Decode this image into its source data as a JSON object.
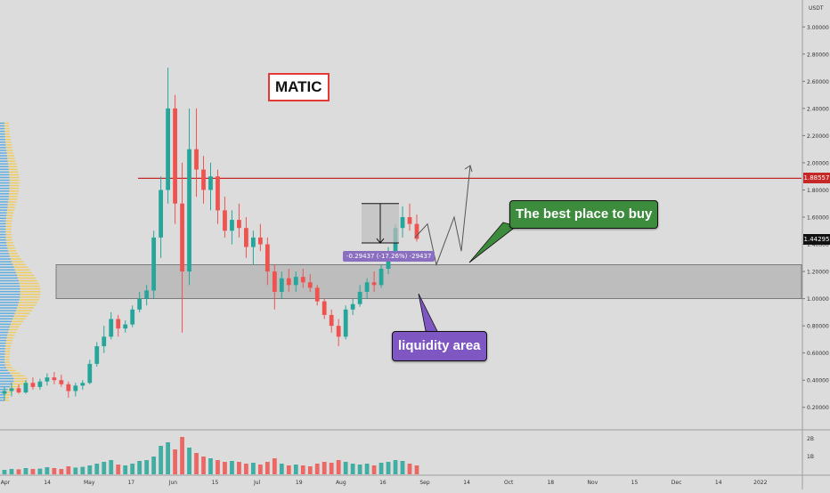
{
  "chart_data": {
    "type": "candlestick",
    "currency": "USDT",
    "ylim": [
      0.1,
      3.1
    ],
    "y_ticks": [
      "3.00000",
      "2.80000",
      "2.60000",
      "2.40000",
      "2.20000",
      "2.00000",
      "1.80000",
      "1.60000",
      "1.40000",
      "1.20000",
      "1.00000",
      "0.80000",
      "0.60000",
      "0.40000",
      "0.20000"
    ],
    "x_ticks": [
      "Apr",
      "14",
      "May",
      "17",
      "Jun",
      "15",
      "Jul",
      "19",
      "Aug",
      "16",
      "Sep",
      "14",
      "Oct",
      "18",
      "Nov",
      "15",
      "Dec",
      "14",
      "2022"
    ],
    "volume_ticks": [
      "2B",
      "1B"
    ],
    "resistance_level": "1.88557",
    "current_price": "1.44295",
    "liquidity_zone": {
      "low": 1.0,
      "high": 1.25
    },
    "measure_label": "-0.29437 (-17.26%) -29437",
    "symbol_label": "MATIC",
    "callout_buy": "The best place to buy",
    "callout_liquidity": "liquidity area",
    "candles": [
      [
        0.3,
        0.35,
        0.25,
        0.32
      ],
      [
        0.32,
        0.38,
        0.28,
        0.34
      ],
      [
        0.34,
        0.37,
        0.3,
        0.31
      ],
      [
        0.31,
        0.4,
        0.3,
        0.38
      ],
      [
        0.38,
        0.42,
        0.33,
        0.35
      ],
      [
        0.35,
        0.41,
        0.33,
        0.39
      ],
      [
        0.39,
        0.45,
        0.36,
        0.42
      ],
      [
        0.42,
        0.46,
        0.37,
        0.4
      ],
      [
        0.4,
        0.44,
        0.35,
        0.37
      ],
      [
        0.37,
        0.39,
        0.27,
        0.32
      ],
      [
        0.32,
        0.38,
        0.28,
        0.36
      ],
      [
        0.36,
        0.4,
        0.33,
        0.38
      ],
      [
        0.38,
        0.55,
        0.37,
        0.52
      ],
      [
        0.52,
        0.68,
        0.5,
        0.65
      ],
      [
        0.65,
        0.8,
        0.6,
        0.72
      ],
      [
        0.72,
        0.9,
        0.7,
        0.85
      ],
      [
        0.85,
        0.88,
        0.72,
        0.78
      ],
      [
        0.78,
        0.84,
        0.75,
        0.81
      ],
      [
        0.81,
        0.95,
        0.79,
        0.92
      ],
      [
        0.92,
        1.05,
        0.9,
        1.0
      ],
      [
        1.0,
        1.1,
        0.95,
        1.06
      ],
      [
        1.06,
        1.5,
        1.0,
        1.45
      ],
      [
        1.45,
        1.9,
        1.3,
        1.8
      ],
      [
        1.8,
        2.7,
        1.7,
        2.4
      ],
      [
        2.4,
        2.5,
        1.55,
        1.7
      ],
      [
        1.7,
        2.0,
        0.75,
        1.2
      ],
      [
        1.2,
        2.4,
        1.1,
        2.1
      ],
      [
        2.1,
        2.4,
        1.75,
        1.95
      ],
      [
        1.95,
        2.05,
        1.7,
        1.8
      ],
      [
        1.8,
        2.0,
        1.65,
        1.9
      ],
      [
        1.9,
        1.95,
        1.55,
        1.65
      ],
      [
        1.65,
        1.75,
        1.45,
        1.5
      ],
      [
        1.5,
        1.65,
        1.4,
        1.58
      ],
      [
        1.58,
        1.7,
        1.45,
        1.52
      ],
      [
        1.52,
        1.6,
        1.3,
        1.38
      ],
      [
        1.38,
        1.5,
        1.25,
        1.45
      ],
      [
        1.45,
        1.55,
        1.35,
        1.4
      ],
      [
        1.4,
        1.45,
        1.1,
        1.2
      ],
      [
        1.2,
        1.25,
        0.92,
        1.05
      ],
      [
        1.05,
        1.2,
        1.0,
        1.15
      ],
      [
        1.15,
        1.22,
        1.05,
        1.1
      ],
      [
        1.1,
        1.2,
        1.05,
        1.16
      ],
      [
        1.16,
        1.22,
        1.08,
        1.12
      ],
      [
        1.12,
        1.18,
        1.05,
        1.08
      ],
      [
        1.08,
        1.1,
        0.95,
        0.98
      ],
      [
        0.98,
        1.0,
        0.85,
        0.88
      ],
      [
        0.88,
        0.92,
        0.75,
        0.8
      ],
      [
        0.8,
        0.85,
        0.65,
        0.72
      ],
      [
        0.72,
        0.95,
        0.7,
        0.92
      ],
      [
        0.92,
        1.0,
        0.88,
        0.96
      ],
      [
        0.96,
        1.1,
        0.94,
        1.05
      ],
      [
        1.05,
        1.15,
        1.0,
        1.12
      ],
      [
        1.12,
        1.2,
        1.05,
        1.1
      ],
      [
        1.1,
        1.25,
        1.08,
        1.22
      ],
      [
        1.22,
        1.38,
        1.18,
        1.35
      ],
      [
        1.35,
        1.55,
        1.3,
        1.52
      ],
      [
        1.52,
        1.68,
        1.45,
        1.6
      ],
      [
        1.6,
        1.7,
        1.5,
        1.55
      ],
      [
        1.55,
        1.62,
        1.42,
        1.44
      ]
    ],
    "volumes": [
      0.25,
      0.3,
      0.28,
      0.35,
      0.3,
      0.32,
      0.4,
      0.35,
      0.3,
      0.45,
      0.38,
      0.42,
      0.5,
      0.6,
      0.7,
      0.8,
      0.55,
      0.5,
      0.6,
      0.75,
      0.8,
      1.0,
      1.6,
      1.8,
      1.4,
      2.1,
      1.5,
      1.2,
      1.0,
      0.9,
      0.8,
      0.7,
      0.75,
      0.7,
      0.6,
      0.65,
      0.55,
      0.7,
      0.9,
      0.6,
      0.5,
      0.55,
      0.5,
      0.45,
      0.6,
      0.7,
      0.65,
      0.8,
      0.7,
      0.6,
      0.55,
      0.6,
      0.5,
      0.65,
      0.7,
      0.8,
      0.75,
      0.6,
      0.5
    ]
  },
  "colors": {
    "up": "#26a69a",
    "down": "#ef5350",
    "resistance": "#c62828",
    "zone_fill": "#b8b8b8",
    "buy_callout": "#3d8b3d",
    "liquidity_callout": "#7e57c2",
    "measure_box": "#8a6fc0"
  },
  "icons": [
    "projection-arrow-icon"
  ]
}
